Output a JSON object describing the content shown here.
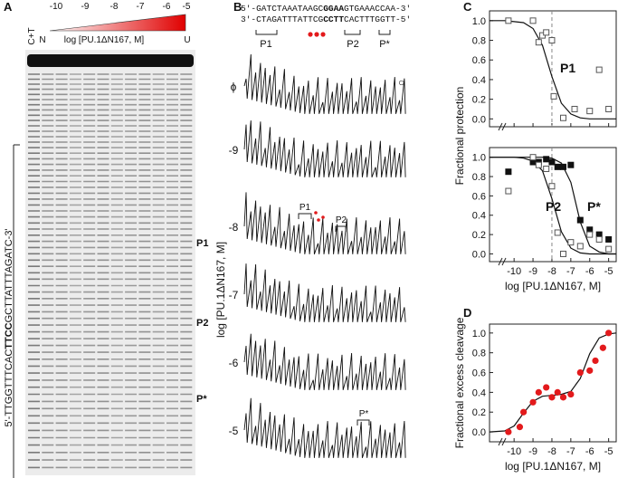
{
  "panels": {
    "a": {
      "letter": "A",
      "concentrations": [
        "-10",
        "-9",
        "-8",
        "-7",
        "-6",
        "-5"
      ],
      "lane_ct": "C+T",
      "lane_n": "N",
      "lane_u": "U",
      "gradient_label": "log [PU.1ΔN167, M]",
      "sequence": [
        "5'-TTGGTTTCAC",
        "TTCC",
        "GCTTATTTAGATC-3'"
      ],
      "sites": [
        "P1",
        "P2",
        "P*"
      ]
    },
    "b": {
      "letter": "B",
      "top_strand": [
        "5'-GATCTAAATAAGC",
        "GGAA",
        "GTGAAACCAA-3'"
      ],
      "bottom_strand": [
        "3'-CTAGATTTATTCG",
        "CCTT",
        "CACTTTGGTT-5'"
      ],
      "seq_sites": [
        "P1",
        "P2",
        "P*"
      ],
      "trace_labels": [
        "ϕ",
        "-9",
        "-8",
        "-7",
        "-6",
        "-5"
      ],
      "trace_marker": "○",
      "trace_sites": [
        "P1",
        "P2",
        "P*"
      ],
      "axis_label": "log [PU.1ΔN167, M]"
    },
    "c": {
      "letter": "C",
      "y_label": "Fractional protection"
    },
    "d": {
      "letter": "D",
      "y_label": "Fractional excess cleavage"
    }
  },
  "chart_data": [
    {
      "type": "scatter",
      "xlim": [
        -11.3,
        -4.6
      ],
      "ylim": [
        -0.08,
        1.1
      ],
      "xticks": [
        -10,
        -9,
        -8,
        -7,
        -6,
        -5
      ],
      "show_xtick_labels": false,
      "yticks": [
        {
          "value": 0,
          "label": "0.0"
        },
        0.2,
        0.4,
        0.6,
        0.8,
        {
          "value": 1,
          "label": "1.0"
        }
      ],
      "vline": -8,
      "annotations": [
        "P1"
      ],
      "series": [
        {
          "marker": "open-square",
          "color": "#555555",
          "x": [
            -10.3,
            -9,
            -8.7,
            -8.5,
            -8.3,
            -8,
            -7.9,
            -7.4,
            -6.8,
            -6,
            -5.5,
            -5
          ],
          "values": [
            1.0,
            1.0,
            0.78,
            0.85,
            0.88,
            0.8,
            0.23,
            0.01,
            0.1,
            0.08,
            0.5,
            0.1
          ]
        },
        {
          "marker": "line",
          "color": "#111111",
          "x": [
            -11.3,
            -10.5,
            -10,
            -9.5,
            -9,
            -8.5,
            -8,
            -7.5,
            -7,
            -6.5,
            -6,
            -5.5,
            -5,
            -4.6
          ],
          "values": [
            1,
            1,
            0.99,
            0.98,
            0.92,
            0.75,
            0.43,
            0.16,
            0.05,
            0.01,
            0,
            0,
            0,
            0
          ]
        }
      ]
    },
    {
      "type": "scatter",
      "xlim": [
        -11.3,
        -4.6
      ],
      "ylim": [
        -0.08,
        1.1
      ],
      "xticks": [
        -10,
        -9,
        -8,
        -7,
        -6,
        -5
      ],
      "show_xtick_labels": true,
      "x_label": "log [PU.1ΔN167, M]",
      "yticks": [
        {
          "value": 0,
          "label": "0.0"
        },
        0.2,
        0.4,
        0.6,
        0.8,
        {
          "value": 1,
          "label": "1.0"
        }
      ],
      "vline": -8,
      "annotations": [
        "P2",
        "P*"
      ],
      "series": [
        {
          "marker": "filled-square",
          "color": "#111111",
          "x": [
            -10.3,
            -9,
            -8.7,
            -8.3,
            -8,
            -7.7,
            -7.4,
            -7,
            -6.5,
            -6,
            -5.5,
            -5
          ],
          "values": [
            0.85,
            0.95,
            0.95,
            0.98,
            0.95,
            0.9,
            0.9,
            0.92,
            0.35,
            0.25,
            0.2,
            0.15
          ]
        },
        {
          "marker": "open-square",
          "color": "#555555",
          "x": [
            -10.3,
            -9,
            -8.7,
            -8.3,
            -8,
            -7.7,
            -7.4,
            -7,
            -6.5,
            -6,
            -5.5,
            -5
          ],
          "values": [
            0.65,
            1.0,
            0.92,
            0.88,
            0.7,
            0.22,
            0.0,
            0.12,
            0.08,
            0.2,
            0.15,
            0.05
          ]
        },
        {
          "marker": "line",
          "color": "#111111",
          "x": [
            -11.3,
            -10.5,
            -10,
            -9.5,
            -9,
            -8.5,
            -8,
            -7.5,
            -7,
            -6.5,
            -6,
            -5.5,
            -5,
            -4.6
          ],
          "values": [
            1,
            1,
            1,
            0.99,
            0.96,
            0.86,
            0.57,
            0.23,
            0.06,
            0.01,
            0,
            0,
            0,
            0
          ]
        },
        {
          "marker": "line",
          "color": "#111111",
          "x": [
            -11.3,
            -10.5,
            -10,
            -9.5,
            -9,
            -8.5,
            -8,
            -7.5,
            -7,
            -6.5,
            -6,
            -5.5,
            -5,
            -4.6
          ],
          "values": [
            1,
            1,
            1,
            1,
            1,
            1,
            0.99,
            0.94,
            0.74,
            0.33,
            0.08,
            0.02,
            0,
            0
          ]
        }
      ]
    },
    {
      "type": "scatter",
      "xlim": [
        -11.3,
        -4.6
      ],
      "ylim": [
        -0.1,
        1.09
      ],
      "xticks": [
        -10,
        -9,
        -8,
        -7,
        -6,
        -5
      ],
      "show_xtick_labels": true,
      "x_label": "log [PU.1ΔN167, M]",
      "yticks": [
        {
          "value": 0,
          "label": "0.0"
        },
        0.2,
        0.4,
        0.6,
        0.8,
        {
          "value": 1,
          "label": "1.0"
        }
      ],
      "series": [
        {
          "marker": "filled-circle",
          "color": "#e31a1c",
          "x": [
            -10.3,
            -9.7,
            -9.5,
            -9,
            -8.7,
            -8.3,
            -8,
            -7.7,
            -7.4,
            -7,
            -6.5,
            -6,
            -5.7,
            -5.3,
            -5
          ],
          "values": [
            0,
            0.05,
            0.2,
            0.3,
            0.4,
            0.45,
            0.35,
            0.4,
            0.35,
            0.38,
            0.6,
            0.62,
            0.72,
            0.85,
            1.0
          ]
        },
        {
          "marker": "line",
          "color": "#111111",
          "x": [
            -11.3,
            -10.5,
            -10,
            -9.5,
            -9,
            -8.5,
            -8,
            -7.5,
            -7,
            -6.5,
            -6,
            -5.5,
            -5,
            -4.6
          ],
          "values": [
            0,
            0.01,
            0.06,
            0.19,
            0.31,
            0.36,
            0.37,
            0.38,
            0.41,
            0.54,
            0.79,
            0.95,
            0.99,
            1.0
          ]
        }
      ]
    }
  ]
}
